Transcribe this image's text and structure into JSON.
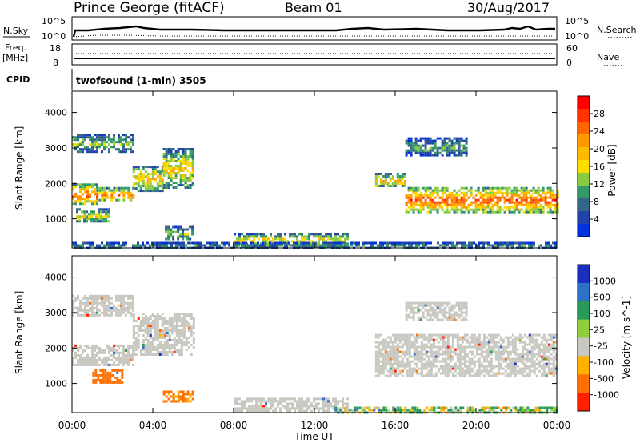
{
  "header": {
    "station": "Prince George (fitACF)",
    "beam": "Beam 01",
    "date": "30/Aug/2017"
  },
  "summary_panels": {
    "nsky_label": "N.Sky",
    "nsky_ticks": [
      "10^5",
      "10^0"
    ],
    "nsearch_label": "N.Search",
    "nsearch_ticks": [
      "10^5",
      "10^0"
    ],
    "freq_label_1": "Freq.",
    "freq_label_2": "[MHz]",
    "freq_ticks": [
      "18",
      "8"
    ],
    "nave_label": "Nave",
    "nave_ticks": [
      "60",
      "0"
    ],
    "cpid_label": "CPID",
    "cpid_text": "twofsound (1-min) 3505"
  },
  "axes": {
    "time_ticks": [
      "00:00",
      "04:00",
      "08:00",
      "12:00",
      "16:00",
      "20:00",
      "00:00"
    ],
    "xlabel": "Time UT",
    "range_ticks": [
      "4000",
      "3000",
      "2000",
      "1000"
    ],
    "ylabel": "Slant Range [km]"
  },
  "power_colorbar": {
    "label": "Power [dB]",
    "ticks": [
      "28",
      "24",
      "20",
      "16",
      "12",
      "8",
      "4"
    ],
    "colors": [
      "#ff0000",
      "#ff3300",
      "#ff6600",
      "#ff9900",
      "#ffbb00",
      "#ffdd00",
      "#88cc44",
      "#339966",
      "#336688",
      "#2244aa",
      "#0033dd"
    ]
  },
  "velocity_colorbar": {
    "label": "Velocity [m s^-1]",
    "ticks": [
      "1000",
      "500",
      "100",
      "25",
      "-25",
      "-100",
      "-500",
      "-1000"
    ],
    "colors": [
      "#1a2fbf",
      "#2d72c8",
      "#2a9a5a",
      "#8fd03a",
      "#c8c8c0",
      "#ffb000",
      "#ff7000",
      "#ff2000"
    ]
  },
  "chart_data": [
    {
      "type": "heatmap",
      "title": "Power",
      "xlabel": "Time UT",
      "ylabel": "Slant Range [km]",
      "xlim": [
        0,
        24
      ],
      "ylim": [
        180,
        4600
      ],
      "colorbar": "Power [dB]",
      "regions": [
        {
          "t": [
            0.0,
            1.2
          ],
          "r": [
            1400,
            2000
          ],
          "v": 24
        },
        {
          "t": [
            1.2,
            3.0
          ],
          "r": [
            1500,
            1900
          ],
          "v": 22
        },
        {
          "t": [
            3.0,
            4.5
          ],
          "r": [
            1800,
            2500
          ],
          "v": 18
        },
        {
          "t": [
            4.5,
            6.0
          ],
          "r": [
            1900,
            3000
          ],
          "v": 17
        },
        {
          "t": [
            0.0,
            3.0
          ],
          "r": [
            2900,
            3400
          ],
          "v": 12
        },
        {
          "t": [
            0.2,
            1.8
          ],
          "r": [
            900,
            1300
          ],
          "v": 14
        },
        {
          "t": [
            4.6,
            6.0
          ],
          "r": [
            400,
            800
          ],
          "v": 13
        },
        {
          "t": [
            8.0,
            13.6
          ],
          "r": [
            250,
            600
          ],
          "v": 16
        },
        {
          "t": [
            15.0,
            16.5
          ],
          "r": [
            1900,
            2300
          ],
          "v": 18
        },
        {
          "t": [
            16.5,
            24.0
          ],
          "r": [
            1200,
            1900
          ],
          "v": 24
        },
        {
          "t": [
            16.5,
            19.5
          ],
          "r": [
            2800,
            3300
          ],
          "v": 10
        },
        {
          "t": [
            0.0,
            24.0
          ],
          "r": [
            180,
            350
          ],
          "v": 9
        }
      ]
    },
    {
      "type": "heatmap",
      "title": "Velocity",
      "xlabel": "Time UT",
      "ylabel": "Slant Range [km]",
      "xlim": [
        0,
        24
      ],
      "ylim": [
        180,
        4600
      ],
      "colorbar": "Velocity [m s^-1]",
      "regions": [
        {
          "t": [
            0.0,
            3.0
          ],
          "r": [
            1500,
            2100
          ],
          "v": 0
        },
        {
          "t": [
            3.0,
            6.0
          ],
          "r": [
            1800,
            3000
          ],
          "v": 0
        },
        {
          "t": [
            0.0,
            3.0
          ],
          "r": [
            2900,
            3500
          ],
          "v": 0
        },
        {
          "t": [
            1.0,
            2.5
          ],
          "r": [
            1000,
            1400
          ],
          "v": -300
        },
        {
          "t": [
            4.5,
            6.0
          ],
          "r": [
            500,
            800
          ],
          "v": -150
        },
        {
          "t": [
            8.0,
            13.6
          ],
          "r": [
            250,
            600
          ],
          "v": 0
        },
        {
          "t": [
            15.0,
            24.0
          ],
          "r": [
            1200,
            2400
          ],
          "v": 0
        },
        {
          "t": [
            16.5,
            19.5
          ],
          "r": [
            2800,
            3300
          ],
          "v": 0
        },
        {
          "t": [
            13.0,
            24.0
          ],
          "r": [
            180,
            350
          ],
          "v": 50
        }
      ]
    }
  ]
}
